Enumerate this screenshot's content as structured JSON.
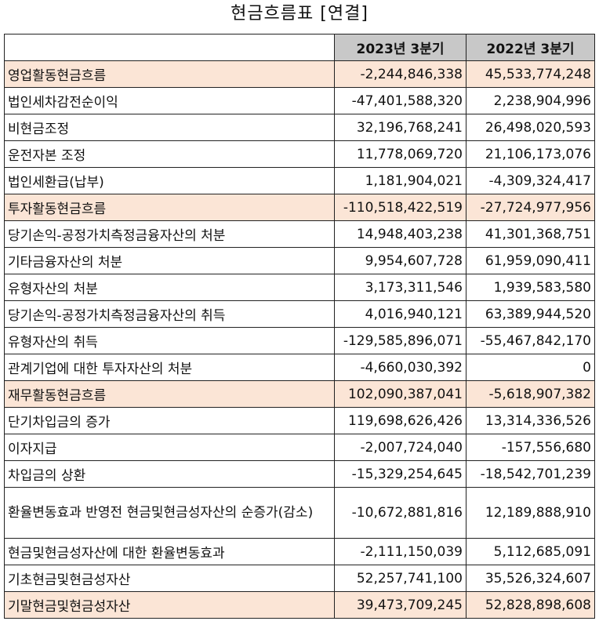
{
  "title": "현금흐름표 [연결]",
  "columns": [
    "",
    "2023년 3분기",
    "2022년 3분기"
  ],
  "rows": [
    {
      "label": "영업활동현금흐름",
      "v2023": "-2,244,846,338",
      "v2022": "45,533,774,248",
      "kind": "section"
    },
    {
      "label": "법인세차감전순이익",
      "v2023": "-47,401,588,320",
      "v2022": "2,238,904,996",
      "kind": "sub"
    },
    {
      "label": "비현금조정",
      "v2023": "32,196,768,241",
      "v2022": "26,498,020,593",
      "kind": "sub"
    },
    {
      "label": "운전자본 조정",
      "v2023": "11,778,069,720",
      "v2022": "21,106,173,076",
      "kind": "sub"
    },
    {
      "label": "법인세환급(납부)",
      "v2023": "1,181,904,021",
      "v2022": "-4,309,324,417",
      "kind": "sub"
    },
    {
      "label": "투자활동현금흐름",
      "v2023": "-110,518,422,519",
      "v2022": "-27,724,977,956",
      "kind": "section"
    },
    {
      "label": "당기손익-공정가치측정금융자산의 처분",
      "v2023": "14,948,403,238",
      "v2022": "41,301,368,751",
      "kind": "sub"
    },
    {
      "label": "기타금융자산의 처분",
      "v2023": "9,954,607,728",
      "v2022": "61,959,090,411",
      "kind": "sub"
    },
    {
      "label": "유형자산의 처분",
      "v2023": "3,173,311,546",
      "v2022": "1,939,583,580",
      "kind": "sub"
    },
    {
      "label": "당기손익-공정가치측정금융자산의 취득",
      "v2023": "4,016,940,121",
      "v2022": "63,389,944,520",
      "kind": "sub"
    },
    {
      "label": "유형자산의 취득",
      "v2023": "-129,585,896,071",
      "v2022": "-55,467,842,170",
      "kind": "sub"
    },
    {
      "label": "관계기업에 대한 투자자산의 처분",
      "v2023": "-4,660,030,392",
      "v2022": "0",
      "kind": "sub"
    },
    {
      "label": "재무활동현금흐름",
      "v2023": "102,090,387,041",
      "v2022": "-5,618,907,382",
      "kind": "section"
    },
    {
      "label": "단기차입금의 증가",
      "v2023": "119,698,626,426",
      "v2022": "13,314,336,526",
      "kind": "sub"
    },
    {
      "label": "이자지급",
      "v2023": "-2,007,724,040",
      "v2022": "-157,556,680",
      "kind": "sub"
    },
    {
      "label": "차입금의 상환",
      "v2023": "-15,329,254,645",
      "v2022": "-18,542,701,239",
      "kind": "sub"
    },
    {
      "label": "환율변동효과 반영전 현금및현금성자산의 순증가(감소)",
      "v2023": "-10,672,881,816",
      "v2022": "12,189,888,910",
      "kind": "tall"
    },
    {
      "label": "현금및현금성자산에 대한 환율변동효과",
      "v2023": "-2,111,150,039",
      "v2022": "5,112,685,091",
      "kind": "plain"
    },
    {
      "label": "기초현금및현금성자산",
      "v2023": "52,257,741,100",
      "v2022": "35,526,324,607",
      "kind": "plain"
    },
    {
      "label": "기말현금및현금성자산",
      "v2023": "39,473,709,245",
      "v2022": "52,828,898,608",
      "kind": "section"
    }
  ]
}
